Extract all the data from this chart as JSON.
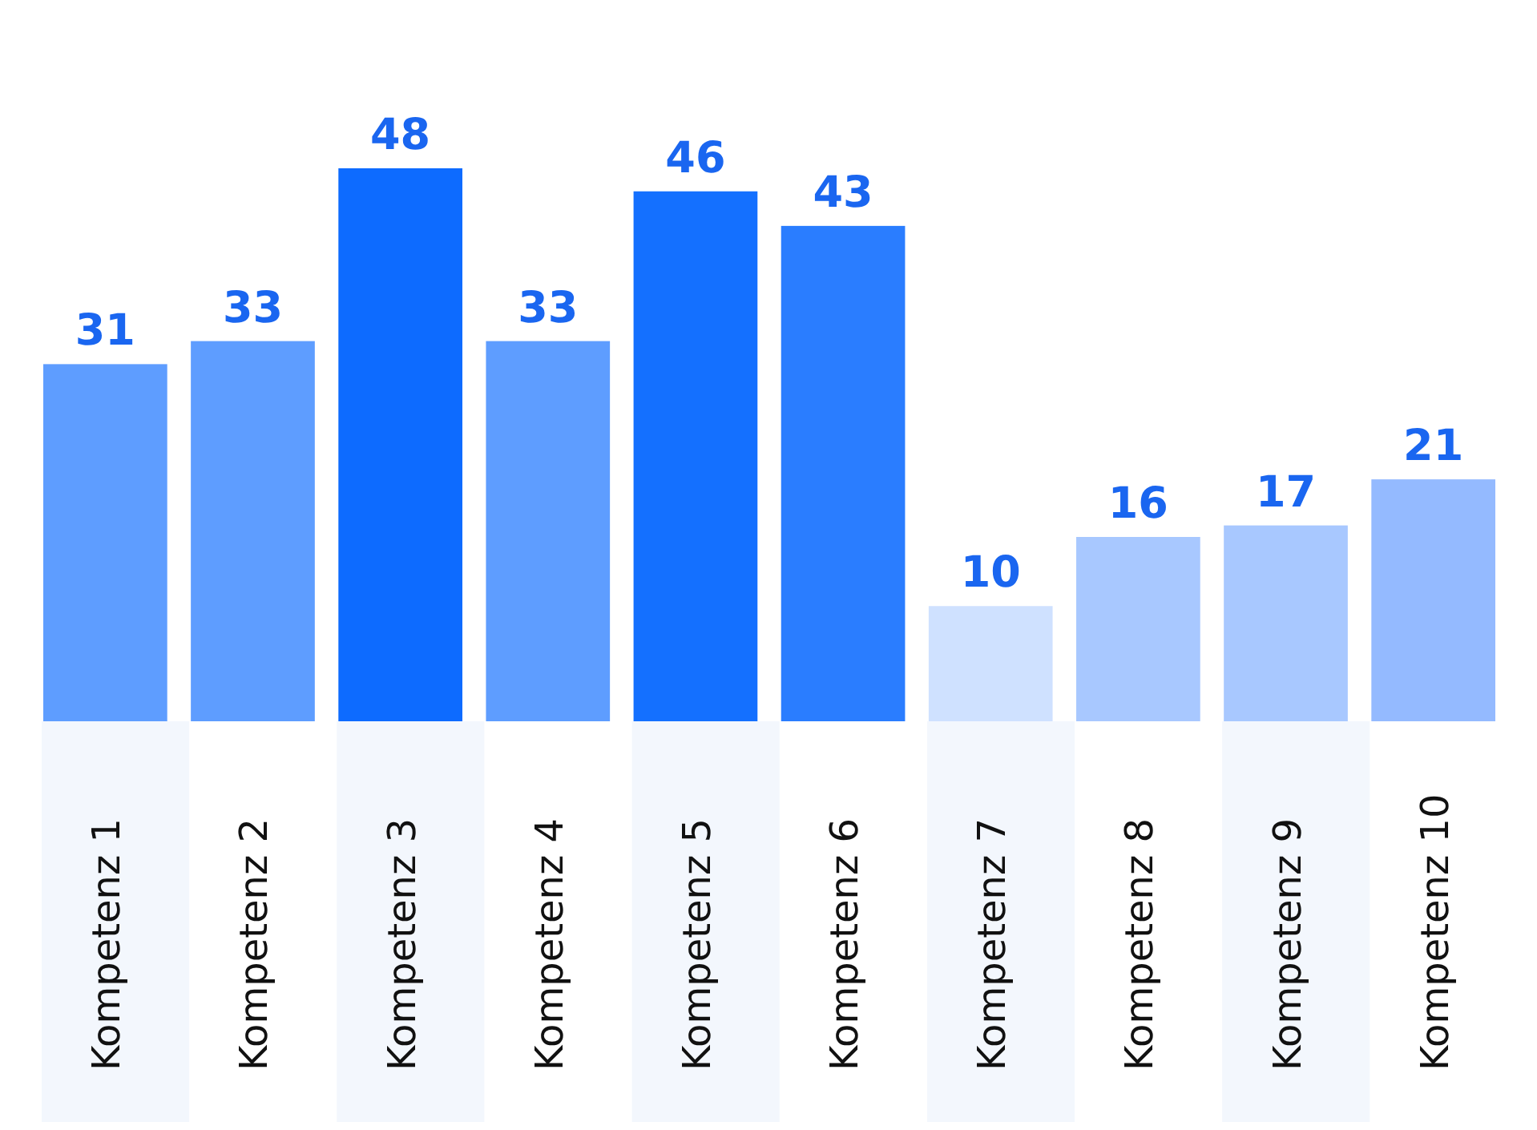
{
  "chart_data": {
    "type": "bar",
    "categories": [
      "Kompetenz 1",
      "Kompetenz 2",
      "Kompetenz 3",
      "Kompetenz 4",
      "Kompetenz 5",
      "Kompetenz 6",
      "Kompetenz 7",
      "Kompetenz 8",
      "Kompetenz 9",
      "Kompetenz 10"
    ],
    "values": [
      31,
      33,
      48,
      33,
      46,
      43,
      10,
      16,
      17,
      21
    ],
    "colors": [
      "#5e9dff",
      "#5e9dff",
      "#0d6bff",
      "#5e9dff",
      "#1470ff",
      "#2a7dff",
      "#cfe1ff",
      "#a8c8ff",
      "#a8c8ff",
      "#94baff"
    ],
    "data_labels": true
  }
}
